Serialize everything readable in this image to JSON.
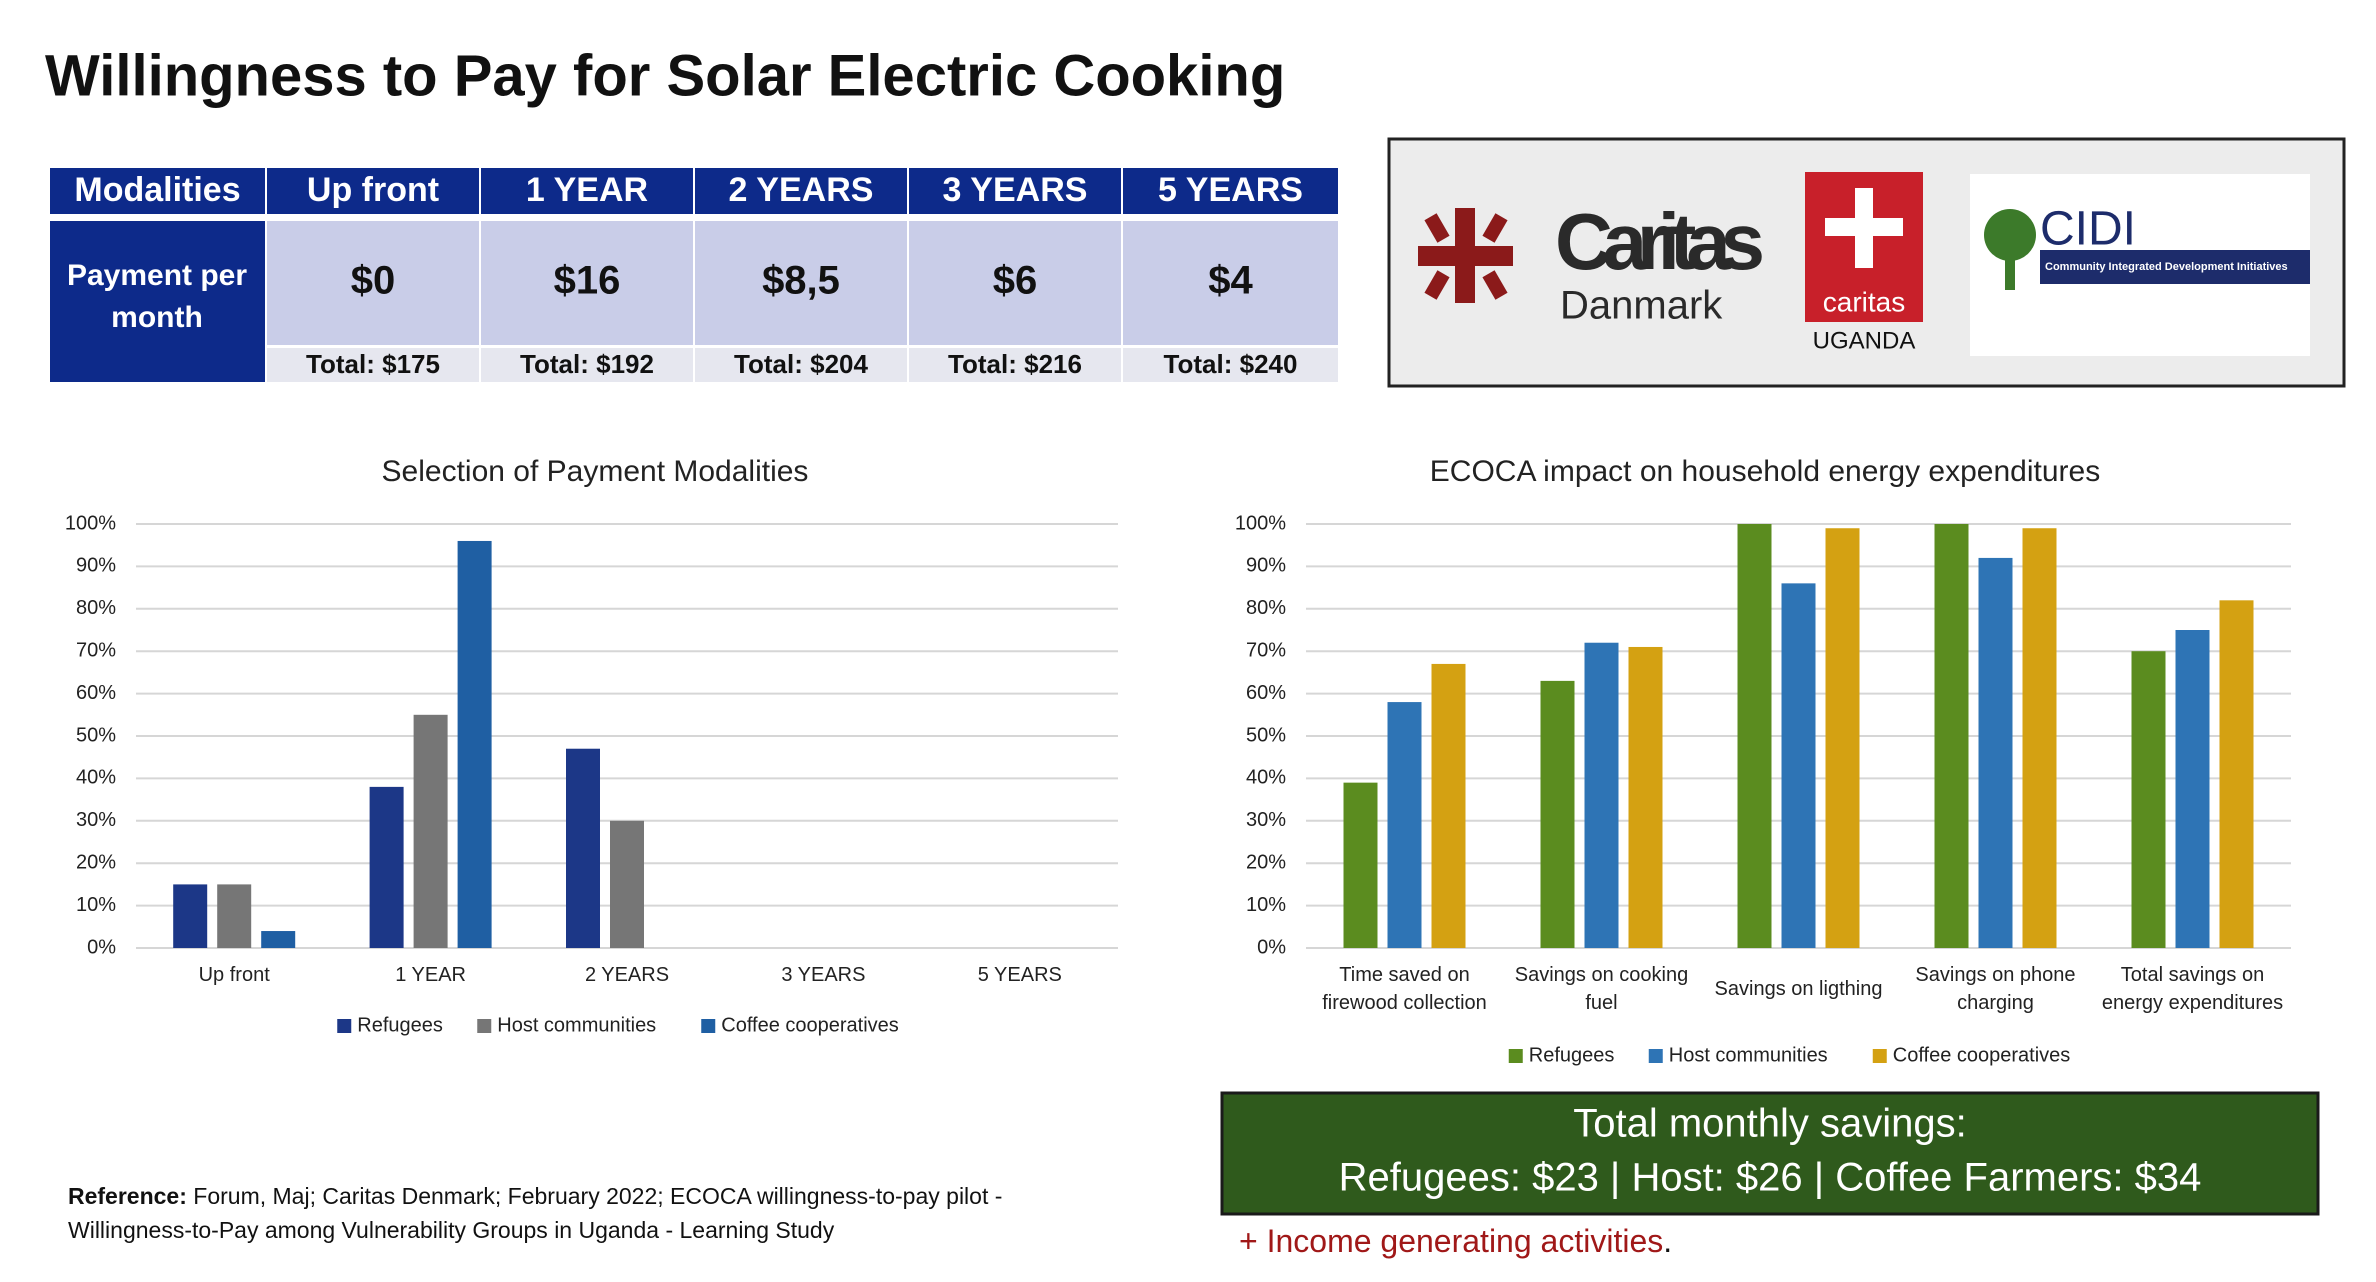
{
  "title": "Willingness to Pay for Solar Electric Cooking",
  "table": {
    "header": [
      "Modalities",
      "Up front",
      "1 YEAR",
      "2 YEARS",
      "3 YEARS",
      "5 YEARS"
    ],
    "row_label": "Payment per month",
    "payments": [
      "$0",
      "$16",
      "$8,5",
      "$6",
      "$4"
    ],
    "totals": [
      "Total: $175",
      "Total: $192",
      "Total: $204",
      "Total: $216",
      "Total: $240"
    ]
  },
  "logos": {
    "caritas_dk": [
      "Caritas",
      "Danmark"
    ],
    "caritas_ug": [
      "caritas",
      "UGANDA"
    ],
    "cidi": [
      "CIDI",
      "Community Integrated Development Initiatives"
    ]
  },
  "chart_data": [
    {
      "type": "bar",
      "title": "Selection of Payment Modalities",
      "categories": [
        "Up front",
        "1 YEAR",
        "2 YEARS",
        "3 YEARS",
        "5 YEARS"
      ],
      "series": [
        {
          "name": "Refugees",
          "color": "#1c3787",
          "values": [
            15,
            38,
            47,
            0,
            0
          ]
        },
        {
          "name": "Host communities",
          "color": "#767676",
          "values": [
            15,
            55,
            30,
            0,
            0
          ]
        },
        {
          "name": "Coffee cooperatives",
          "color": "#1f5fa3",
          "values": [
            4,
            96,
            0,
            0,
            0
          ]
        }
      ],
      "ylim": [
        0,
        100
      ],
      "yticks": [
        {
          "value": 0,
          "label": "0%"
        },
        {
          "value": 10,
          "label": "10%"
        },
        {
          "value": 20,
          "label": "20%"
        },
        {
          "value": 30,
          "label": "30%"
        },
        {
          "value": 40,
          "label": "40%"
        },
        {
          "value": 50,
          "label": "50%"
        },
        {
          "value": 60,
          "label": "60%"
        },
        {
          "value": 70,
          "label": "70%"
        },
        {
          "value": 80,
          "label": "80%"
        },
        {
          "value": 90,
          "label": "90%"
        },
        {
          "value": 100,
          "label": "100%"
        }
      ],
      "grid": true,
      "legend": "bottom"
    },
    {
      "type": "bar",
      "title": "ECOCA impact on household energy expenditures",
      "categories": [
        "Time saved on firewood collection",
        "Savings on cooking fuel",
        "Savings on ligthing",
        "Savings on phone charging",
        "Total savings on energy expenditures"
      ],
      "series": [
        {
          "name": "Refugees",
          "color": "#5b8c1f",
          "values": [
            39,
            63,
            100,
            100,
            70
          ]
        },
        {
          "name": "Host communities",
          "color": "#2e74b5",
          "values": [
            58,
            72,
            86,
            92,
            75
          ]
        },
        {
          "name": "Coffee cooperatives",
          "color": "#d4a112",
          "values": [
            67,
            71,
            99,
            99,
            82
          ]
        }
      ],
      "ylim": [
        0,
        100
      ],
      "yticks": [
        {
          "value": 0,
          "label": "0%"
        },
        {
          "value": 10,
          "label": "10%"
        },
        {
          "value": 20,
          "label": "20%"
        },
        {
          "value": 30,
          "label": "30%"
        },
        {
          "value": 40,
          "label": "40%"
        },
        {
          "value": 50,
          "label": "50%"
        },
        {
          "value": 60,
          "label": "60%"
        },
        {
          "value": 70,
          "label": "70%"
        },
        {
          "value": 80,
          "label": "80%"
        },
        {
          "value": 90,
          "label": "90%"
        },
        {
          "value": 100,
          "label": "100%"
        }
      ],
      "grid": true,
      "legend": "bottom"
    }
  ],
  "savings": [
    "Total monthly savings:",
    "Refugees: $23 | Host: $26 | Coffee Farmers: $34"
  ],
  "income_note": {
    "text": "+ Income generating activities",
    "end": "."
  },
  "reference": {
    "label": "Reference:",
    "lines": [
      " Forum, Maj; Caritas Denmark; February 2022; ECOCA willingness-to-pay pilot -",
      "Willingness-to-Pay among Vulnerability Groups in Uganda - Learning Study"
    ]
  }
}
